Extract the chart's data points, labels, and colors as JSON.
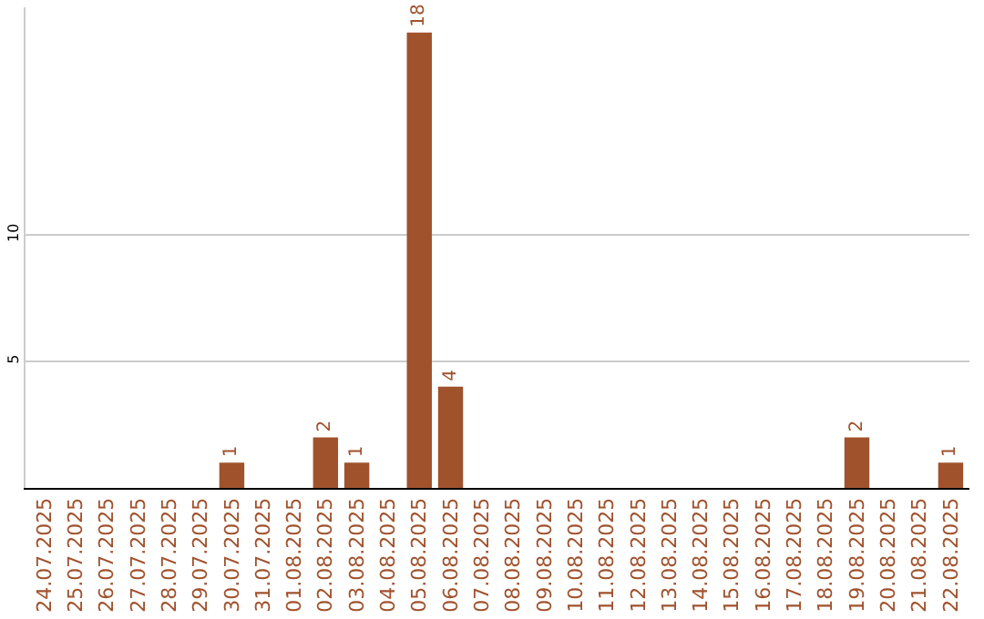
{
  "chart_data": {
    "type": "bar",
    "categories": [
      "24.07.2025",
      "25.07.2025",
      "26.07.2025",
      "27.07.2025",
      "28.07.2025",
      "29.07.2025",
      "30.07.2025",
      "31.07.2025",
      "01.08.2025",
      "02.08.2025",
      "03.08.2025",
      "04.08.2025",
      "05.08.2025",
      "06.08.2025",
      "07.08.2025",
      "08.08.2025",
      "09.08.2025",
      "10.08.2025",
      "11.08.2025",
      "12.08.2025",
      "13.08.2025",
      "14.08.2025",
      "15.08.2025",
      "16.08.2025",
      "17.08.2025",
      "18.08.2025",
      "19.08.2025",
      "20.08.2025",
      "21.08.2025",
      "22.08.2025"
    ],
    "values": [
      0,
      0,
      0,
      0,
      0,
      0,
      1,
      0,
      0,
      2,
      1,
      0,
      18,
      4,
      0,
      0,
      0,
      0,
      0,
      0,
      0,
      0,
      0,
      0,
      0,
      0,
      2,
      0,
      0,
      1
    ],
    "value_labels": [
      null,
      null,
      null,
      null,
      null,
      null,
      "1",
      null,
      null,
      "2",
      "1",
      null,
      "18",
      "4",
      null,
      null,
      null,
      null,
      null,
      null,
      null,
      null,
      null,
      null,
      null,
      null,
      "2",
      null,
      null,
      "1"
    ],
    "color": "#a0522d",
    "ylim": [
      0,
      19
    ],
    "yticks": [
      5,
      10
    ],
    "grid": "y"
  }
}
